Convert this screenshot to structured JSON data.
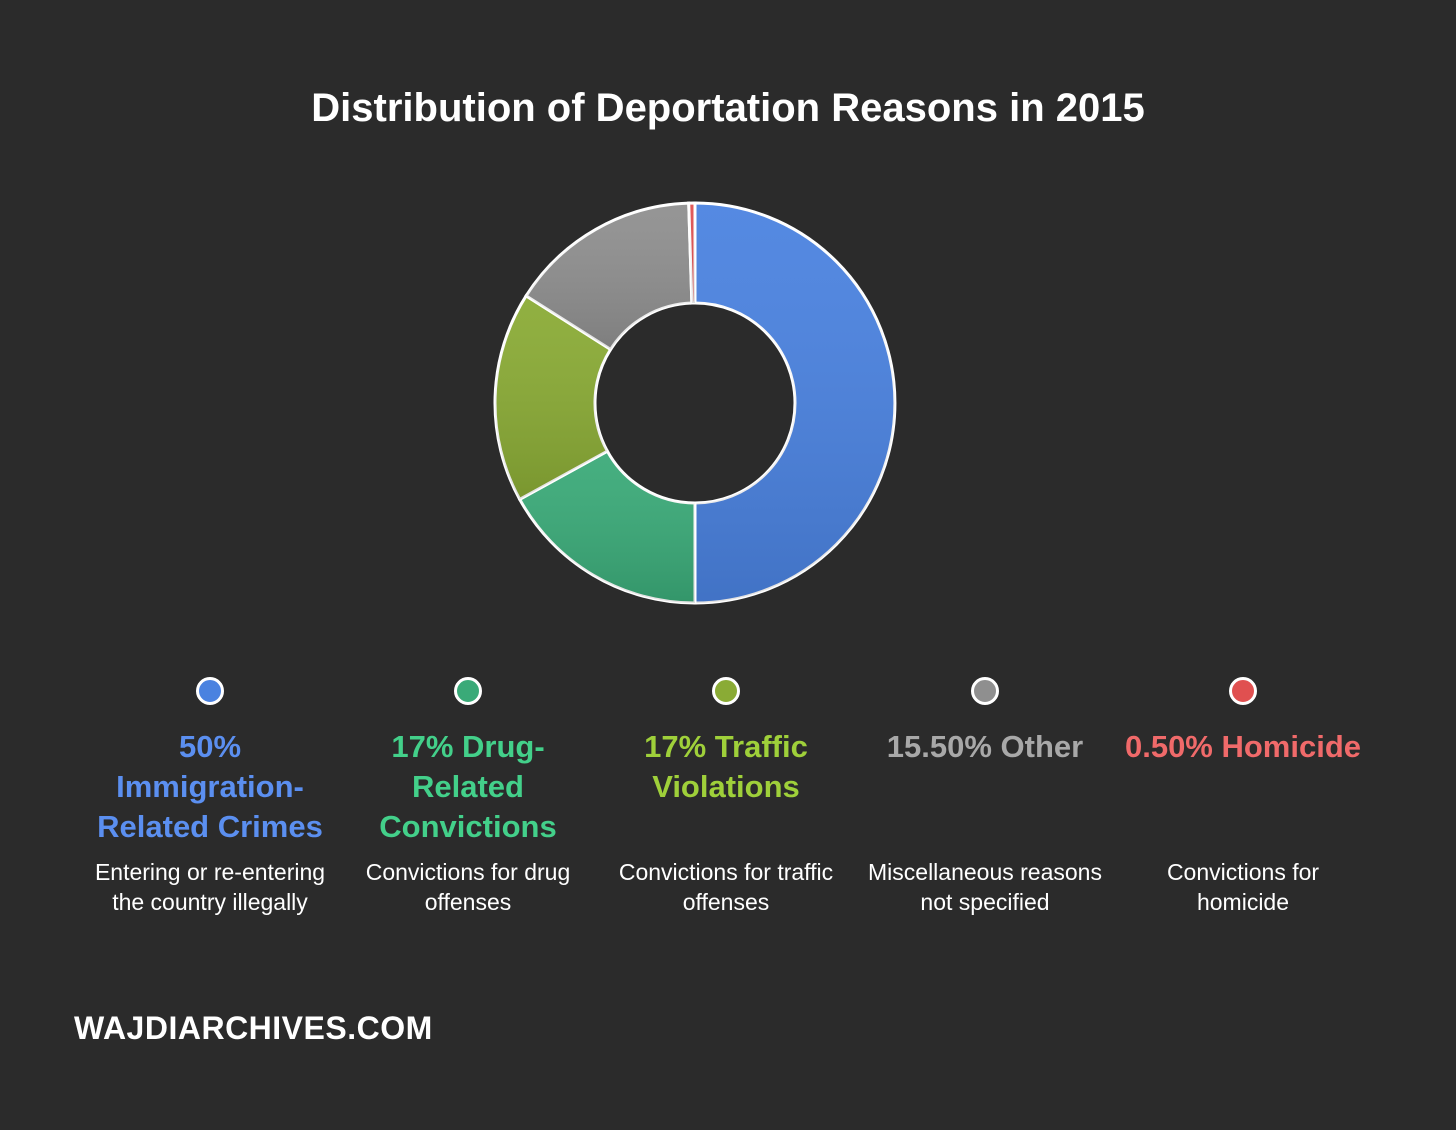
{
  "chart_data": {
    "type": "pie",
    "title": "Distribution of Deportation Reasons in 2015",
    "categories": [
      "Immigration-Related Crimes",
      "Drug-Related Convictions",
      "Traffic Violations",
      "Other",
      "Homicide"
    ],
    "values": [
      50,
      17,
      17,
      15.5,
      0.5
    ],
    "colors": [
      "#4a82e0",
      "#3aaa78",
      "#8aab35",
      "#8f8f8f",
      "#e05050"
    ],
    "labels": [
      "50% Immigration-Related Crimes",
      "17% Drug-Related Convictions",
      "17% Traffic Violations",
      "15.50% Other",
      "0.50% Homicide"
    ],
    "label_colors": [
      "#5b8ff0",
      "#43d08a",
      "#9fd03a",
      "#a8a8a8",
      "#f06a6a"
    ],
    "descriptions": [
      "Entering or re-entering the country illegally",
      "Convictions for drug offenses",
      "Convictions for traffic offenses",
      "Miscellaneous reasons not specified",
      "Convictions for homicide"
    ],
    "legend_position": "bottom"
  },
  "watermark": "WAJDIARCHIVES.COM"
}
